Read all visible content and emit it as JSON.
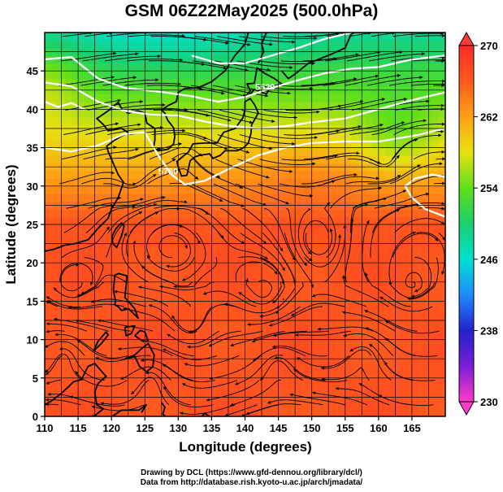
{
  "title": "GSM 06Z22May2025 (500.0hPa)",
  "chart_data": {
    "type": "heatmap",
    "title": "GSM 06Z22May2025 (500.0hPa)",
    "xlabel": "Longitude (degrees)",
    "ylabel": "Latitude  (degrees)",
    "xlim": [
      110,
      170
    ],
    "ylim": [
      0,
      50
    ],
    "x_ticks": [
      110,
      115,
      120,
      125,
      130,
      135,
      140,
      145,
      150,
      155,
      160,
      165
    ],
    "y_ticks": [
      0,
      5,
      10,
      15,
      20,
      25,
      30,
      35,
      40,
      45
    ],
    "colorbar": {
      "min": 230,
      "max": 270,
      "ticks": [
        230,
        238,
        246,
        254,
        262,
        270
      ],
      "colors": [
        "#ff3cc8",
        "#7a1fd6",
        "#2222cc",
        "#1e8cff",
        "#00e0d0",
        "#19d06e",
        "#5ee01a",
        "#e8e010",
        "#ffa014",
        "#ff5a1e",
        "#ff2a28"
      ]
    },
    "contours": [
      {
        "label": "5520",
        "lon": 143,
        "lat": 42.5
      },
      {
        "label": "5760",
        "lon": 128.5,
        "lat": 31.5
      }
    ],
    "overlay": "streamlines and coastlines"
  },
  "credits": {
    "line1": "Drawing by DCL (https://www.gfd-dennou.org/library/dcl/)",
    "line2": "Data from http://database.rish.kyoto-u.ac.jp/arch/jmadata/"
  }
}
